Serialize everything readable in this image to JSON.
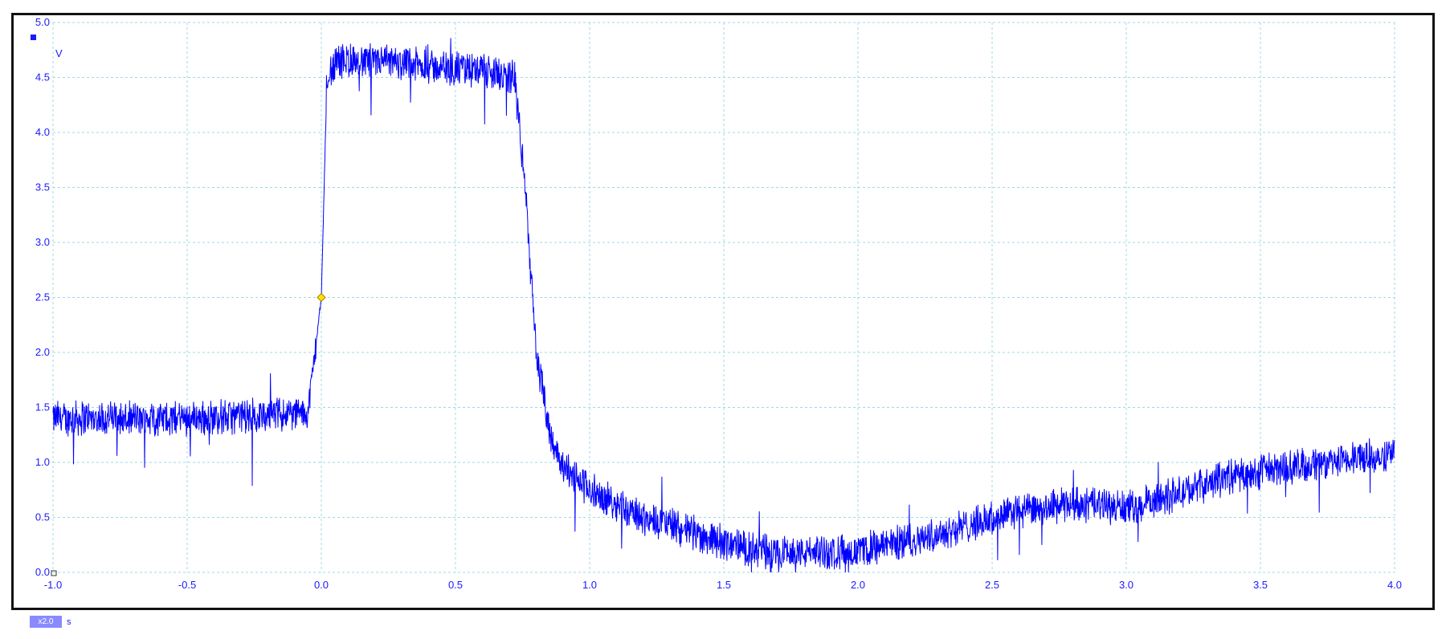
{
  "scope": {
    "channel_color": "#0000ff",
    "grid_color": "#9fd8e6",
    "label_color": "#1a1aff",
    "trigger_marker_color": "#ffe000",
    "zoom_label": "x2.0",
    "x_unit": "s",
    "y_unit": "V"
  },
  "chart_data": {
    "type": "line",
    "title": "",
    "xlabel": "s",
    "ylabel": "V",
    "xlim": [
      -1.0,
      4.0
    ],
    "ylim": [
      0.0,
      5.0
    ],
    "grid": true,
    "x_ticks": [
      "-1.0",
      "-0.5",
      "0.0",
      "0.5",
      "1.0",
      "1.5",
      "2.0",
      "2.5",
      "3.0",
      "3.5",
      "4.0"
    ],
    "y_ticks": [
      "0.0",
      "0.5",
      "1.0",
      "1.5",
      "2.0",
      "2.5",
      "3.0",
      "3.5",
      "4.0",
      "4.5",
      "5.0"
    ],
    "trigger": {
      "x": 0.0,
      "y": 2.5
    },
    "series": [
      {
        "color": "#0000ff",
        "noise": 0.28,
        "x": [
          -1.0,
          -0.5,
          -0.05,
          0.0,
          0.02,
          0.05,
          0.2,
          0.4,
          0.6,
          0.72,
          0.76,
          0.8,
          0.85,
          0.9,
          1.0,
          1.2,
          1.4,
          1.6,
          1.8,
          2.0,
          2.2,
          2.4,
          2.6,
          2.8,
          3.0,
          3.2,
          3.4,
          3.6,
          3.8,
          4.0
        ],
        "y": [
          1.4,
          1.4,
          1.45,
          2.5,
          4.4,
          4.65,
          4.65,
          4.6,
          4.55,
          4.5,
          3.5,
          2.0,
          1.3,
          0.95,
          0.75,
          0.5,
          0.35,
          0.2,
          0.18,
          0.2,
          0.3,
          0.42,
          0.55,
          0.62,
          0.58,
          0.72,
          0.88,
          0.95,
          1.0,
          1.1
        ]
      }
    ]
  }
}
